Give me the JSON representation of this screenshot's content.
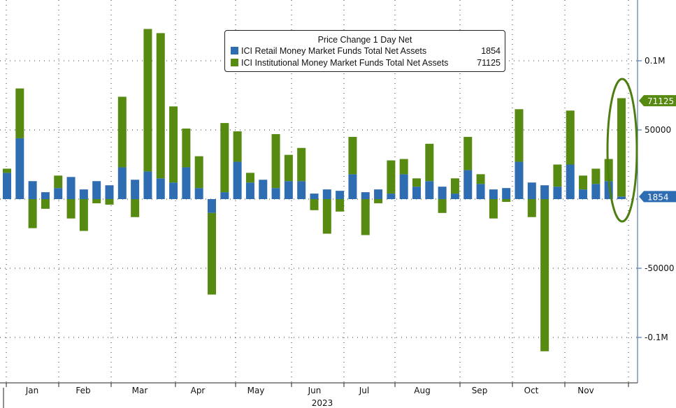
{
  "chart_data": {
    "type": "bar",
    "stacked": true,
    "title": "Price Change 1 Day Net",
    "xlabel": "2023",
    "ylabel": "",
    "ylim": [
      -120000,
      120000
    ],
    "yticks": [
      {
        "v": 100000,
        "label": "0.1M"
      },
      {
        "v": 50000,
        "label": "50000"
      },
      {
        "v": -50000,
        "label": "-50000"
      },
      {
        "v": -100000,
        "label": "-0.1M"
      }
    ],
    "month_ticks": [
      "Jan",
      "Feb",
      "Mar",
      "Apr",
      "May",
      "Jun",
      "Jul",
      "Aug",
      "Sep",
      "Oct",
      "Nov"
    ],
    "x": [
      1,
      2,
      3,
      4,
      5,
      6,
      7,
      8,
      9,
      10,
      11,
      12,
      13,
      14,
      15,
      16,
      17,
      18,
      19,
      20,
      21,
      22,
      23,
      24,
      25,
      26,
      27,
      28,
      29,
      30,
      31,
      32,
      33,
      34,
      35,
      36,
      37,
      38,
      39,
      40,
      41,
      42,
      43,
      44,
      45,
      46,
      47,
      48,
      49
    ],
    "series": [
      {
        "name": "ICI Retail Money Market Funds Total Net Assets",
        "last": "1854",
        "color": "#2f6db3",
        "values": [
          19000,
          44000,
          13000,
          5000,
          8000,
          16000,
          7000,
          13000,
          10000,
          23000,
          14000,
          20000,
          15000,
          12000,
          23000,
          8000,
          -10000,
          5000,
          27000,
          12000,
          14000,
          8000,
          13000,
          13000,
          4000,
          7000,
          6000,
          18000,
          5000,
          7000,
          4000,
          18000,
          9000,
          13000,
          9000,
          4000,
          21000,
          11000,
          7000,
          8000,
          27000,
          12000,
          10000,
          9000,
          25000,
          7000,
          11000,
          13000,
          1854
        ]
      },
      {
        "name": "ICI Institutional Money Market Funds Total Net Assets",
        "last": "71125",
        "color": "#578a10",
        "values": [
          3000,
          36000,
          -21000,
          -7000,
          9000,
          -14000,
          -23000,
          -3000,
          -4000,
          51000,
          -13000,
          103000,
          105000,
          55000,
          28000,
          23000,
          -59000,
          50000,
          22000,
          7000,
          0,
          39000,
          19000,
          24000,
          -8000,
          -25000,
          -9000,
          27000,
          -26000,
          -3000,
          24000,
          11000,
          6000,
          27000,
          -10000,
          11000,
          24000,
          7000,
          -14000,
          -2000,
          38000,
          -13000,
          -110000,
          16000,
          39000,
          10000,
          11000,
          16000,
          71125
        ]
      }
    ],
    "legend": "top-center"
  }
}
